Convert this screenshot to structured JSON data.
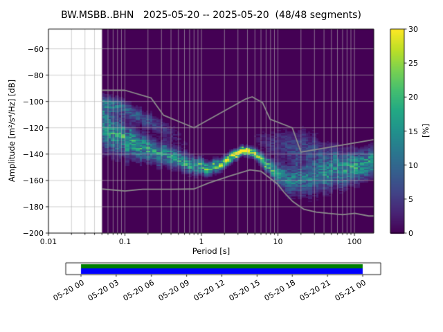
{
  "figure": {
    "background": "#ffffff"
  },
  "chart_data": {
    "type": "heatmap",
    "title": "BW.MSBB..BHN   2025-05-20 -- 2025-05-20  (48/48 segments)",
    "station_id": "BW.MSBB..BHN",
    "date_range": "2025-05-20 -- 2025-05-20",
    "segments_used": 48,
    "segments_total": 48,
    "xlabel": "Period [s]",
    "ylabel": "Amplitude [m²/s⁴/Hz] [dB]",
    "xscale": "log",
    "xlim": [
      0.01,
      179
    ],
    "ylim": [
      -200,
      -45
    ],
    "grid": true,
    "grid_color": "#b0b0b0",
    "histogram_background": "#440154",
    "xticks": {
      "values": [
        0.01,
        0.1,
        1,
        10,
        100
      ],
      "labels": [
        "0.01",
        "0.1",
        "1",
        "10",
        "100"
      ]
    },
    "yticks": {
      "values": [
        -60,
        -80,
        -100,
        -120,
        -140,
        -160,
        -180,
        -200
      ],
      "labels": [
        "−60",
        "−80",
        "−100",
        "−120",
        "−140",
        "−160",
        "−180",
        "−200"
      ]
    },
    "colorbar": {
      "label": "[%]",
      "min": 0,
      "max": 30,
      "colormap": "viridis",
      "ticks": {
        "values": [
          0,
          5,
          10,
          15,
          20,
          25,
          30
        ],
        "labels": [
          "0",
          "5",
          "10",
          "15",
          "20",
          "25",
          "30"
        ]
      }
    },
    "histogram": {
      "period_range_s": [
        0.05,
        179
      ],
      "peak": {
        "period_s": 3.5,
        "db": -137,
        "percent": 30
      },
      "bands": [
        {
          "name": "main-ridge",
          "periods": [
            0.05,
            0.07,
            0.1,
            0.15,
            0.22,
            0.35,
            0.5,
            0.8,
            1.2,
            1.8,
            2.5,
            3.5,
            5,
            7,
            10,
            15,
            22,
            35,
            60,
            100,
            179
          ],
          "center_db": [
            -120,
            -125,
            -129,
            -133,
            -137,
            -141,
            -145,
            -149,
            -151,
            -148,
            -142,
            -137,
            -140,
            -148,
            -155,
            -159,
            -158,
            -155,
            -152,
            -150,
            -148
          ],
          "spread_db": [
            20,
            17,
            14,
            12,
            10,
            9,
            8,
            7,
            6,
            5,
            4.5,
            3.5,
            4,
            6,
            9,
            12,
            14,
            15,
            14,
            13,
            12
          ],
          "intensity": [
            0.45,
            0.5,
            0.55,
            0.5,
            0.5,
            0.5,
            0.5,
            0.55,
            0.6,
            0.7,
            0.85,
            1.05,
            0.9,
            0.6,
            0.5,
            0.4,
            0.35,
            0.4,
            0.45,
            0.5,
            0.5
          ]
        },
        {
          "name": "short-period-upper-band",
          "periods": [
            0.05,
            0.08,
            0.12,
            0.2,
            0.35,
            0.6,
            0.9
          ],
          "center_db": [
            -101,
            -104,
            -108,
            -114,
            -122,
            -131,
            -136
          ],
          "spread_db": [
            7,
            7,
            7,
            7,
            8,
            8,
            8
          ],
          "intensity": [
            0.35,
            0.32,
            0.28,
            0.22,
            0.12,
            0.05,
            0
          ]
        },
        {
          "name": "long-period-fuzz",
          "periods": [
            4,
            6,
            10,
            16,
            25,
            40,
            70,
            110
          ],
          "center_db": [
            -128,
            -130,
            -132,
            -134,
            -137,
            -140,
            -142,
            -143
          ],
          "spread_db": [
            6,
            8,
            12,
            15,
            16,
            13,
            10,
            8
          ],
          "intensity": [
            0,
            0.08,
            0.15,
            0.2,
            0.2,
            0.12,
            0.07,
            0
          ]
        }
      ]
    },
    "noise_models": {
      "color": "#8c8c8c",
      "nhnm": {
        "periods_s": [
          0.05,
          0.1,
          0.22,
          0.32,
          0.8,
          3.8,
          4.6,
          6.3,
          7.9,
          15.4,
          20,
          179
        ],
        "db": [
          -91.5,
          -91.5,
          -97.4,
          -110.5,
          -120,
          -98.1,
          -96.5,
          -101,
          -113.5,
          -120,
          -138.5,
          -129
        ]
      },
      "nlnm": {
        "periods_s": [
          0.05,
          0.1,
          0.17,
          0.4,
          0.8,
          1.24,
          2.4,
          4.3,
          6,
          10,
          12,
          15.6,
          21.9,
          31.6,
          45,
          70,
          101,
          154,
          179
        ],
        "db": [
          -166.5,
          -168,
          -166.7,
          -166.7,
          -166.5,
          -162,
          -156.5,
          -152,
          -153,
          -163,
          -169,
          -176,
          -182,
          -184,
          -185,
          -186,
          -185,
          -187,
          -187
        ]
      }
    },
    "coverage_bar": {
      "tick_labels": [
        "05-20 00",
        "05-20 03",
        "05-20 06",
        "05-20 09",
        "05-20 12",
        "05-20 15",
        "05-20 18",
        "05-20 21",
        "05-21 00"
      ],
      "top_color": "#008000",
      "bottom_color": "#0000ff",
      "frame_color": "#000000"
    }
  }
}
